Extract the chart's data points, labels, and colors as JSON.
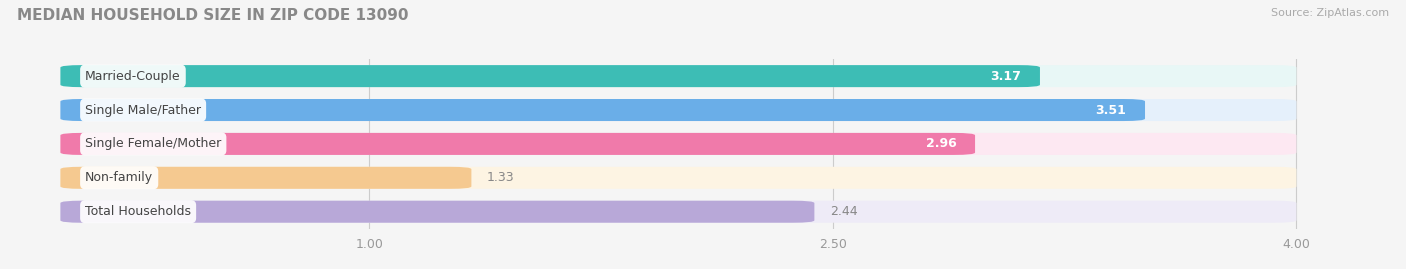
{
  "title": "MEDIAN HOUSEHOLD SIZE IN ZIP CODE 13090",
  "source": "Source: ZipAtlas.com",
  "categories": [
    "Married-Couple",
    "Single Male/Father",
    "Single Female/Mother",
    "Non-family",
    "Total Households"
  ],
  "values": [
    3.17,
    3.51,
    2.96,
    1.33,
    2.44
  ],
  "bar_colors": [
    "#3dbdb5",
    "#6aaee8",
    "#f07aaa",
    "#f5c990",
    "#b8a8d8"
  ],
  "bar_bg_colors": [
    "#e8f7f6",
    "#e5f0fb",
    "#fde8f2",
    "#fdf4e3",
    "#eeebf7"
  ],
  "xmin": 0.0,
  "xmax": 4.0,
  "xlim_left": -0.15,
  "xlim_right": 4.3,
  "xticks": [
    1.0,
    2.5,
    4.0
  ],
  "xticklabels": [
    "1.00",
    "2.50",
    "4.00"
  ],
  "value_color": "white",
  "label_color": "#444444",
  "title_color": "#888888",
  "source_color": "#aaaaaa",
  "title_fontsize": 11,
  "label_fontsize": 9,
  "value_fontsize": 9,
  "bar_height": 0.65,
  "background_color": "#f5f5f5",
  "non_family_value_color": "#888888"
}
